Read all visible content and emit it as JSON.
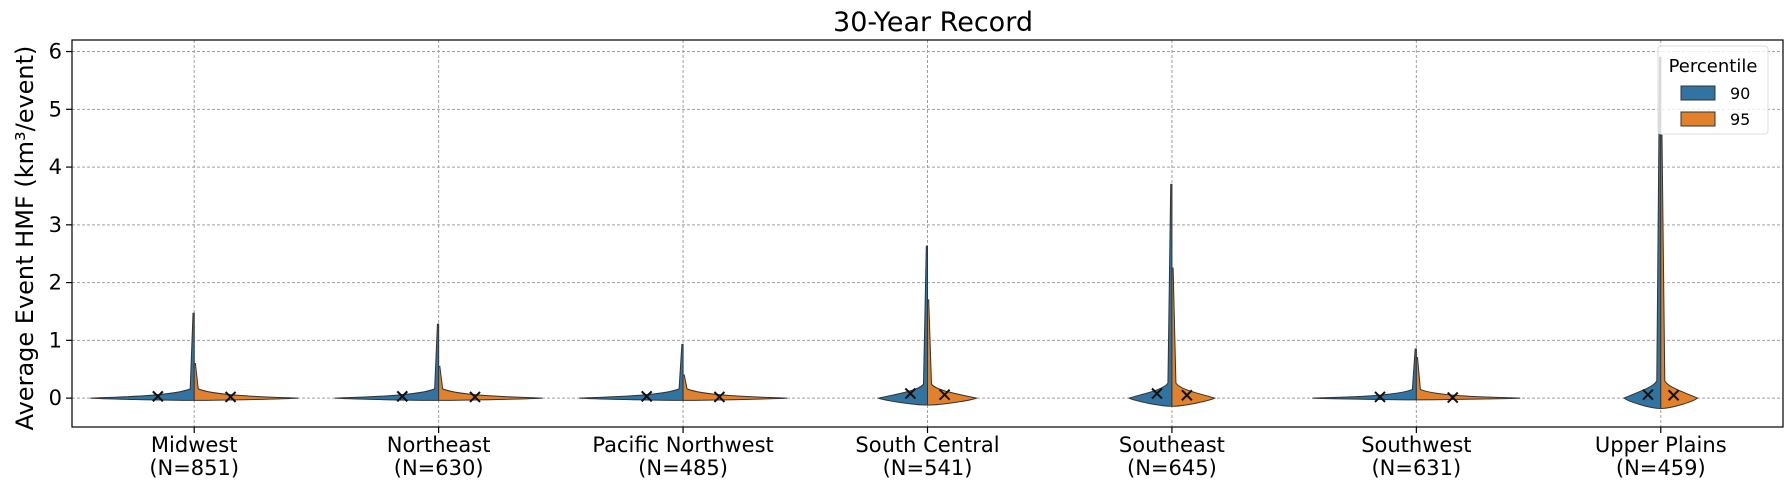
{
  "chart_data": {
    "type": "violin",
    "title": "30-Year Record",
    "ylabel": "Average Event HMF (km³/event)",
    "xlabel": "",
    "ylim": [
      -0.5,
      6.2
    ],
    "yticks": [
      0,
      1,
      2,
      3,
      4,
      5,
      6
    ],
    "grid": true,
    "legend": {
      "title": "Percentile",
      "placement": "top-right",
      "entries": [
        {
          "label": "90",
          "color": "#3274a1"
        },
        {
          "label": "95",
          "color": "#e1812c"
        }
      ]
    },
    "categories": [
      {
        "region": "Midwest",
        "n_label": "(N=851)",
        "max90": 1.47,
        "max95": 0.6,
        "width": 0.85,
        "body": 0.04,
        "median90": 0.03,
        "median95": 0.02
      },
      {
        "region": "Northeast",
        "n_label": "(N=630)",
        "max90": 1.28,
        "max95": 0.55,
        "width": 0.85,
        "body": 0.04,
        "median90": 0.03,
        "median95": 0.02
      },
      {
        "region": "Pacific Northwest",
        "n_label": "(N=485)",
        "max90": 0.93,
        "max95": 0.4,
        "width": 0.85,
        "body": 0.04,
        "median90": 0.03,
        "median95": 0.02
      },
      {
        "region": "South Central",
        "n_label": "(N=541)",
        "max90": 2.63,
        "max95": 1.7,
        "width": 0.4,
        "body": 0.12,
        "median90": 0.08,
        "median95": 0.06
      },
      {
        "region": "Southeast",
        "n_label": "(N=645)",
        "max90": 3.7,
        "max95": 2.25,
        "width": 0.35,
        "body": 0.14,
        "median90": 0.08,
        "median95": 0.05
      },
      {
        "region": "Southwest",
        "n_label": "(N=631)",
        "max90": 0.85,
        "max95": 0.7,
        "width": 0.85,
        "body": 0.03,
        "median90": 0.02,
        "median95": 0.01
      },
      {
        "region": "Upper Plains",
        "n_label": "(N=459)",
        "max90": 5.9,
        "max95": 4.55,
        "width": 0.3,
        "body": 0.18,
        "median90": 0.06,
        "median95": 0.05
      }
    ]
  }
}
